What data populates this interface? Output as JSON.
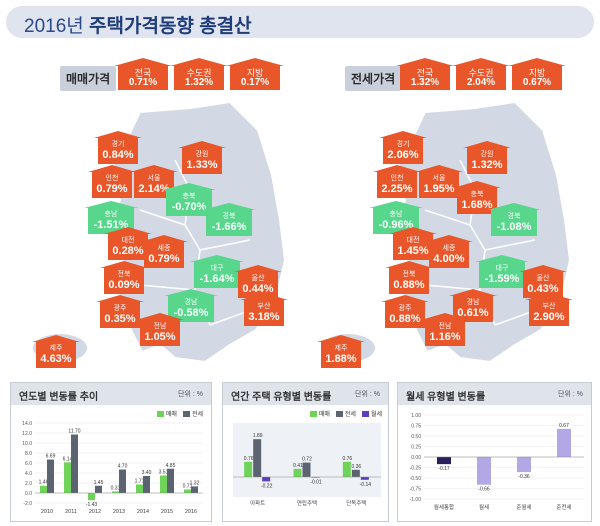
{
  "title": {
    "year": "2016년",
    "main": "주택가격동향 총결산"
  },
  "colors": {
    "up": "#e8562a",
    "down": "#57d68c",
    "sale": "#6fd35a",
    "jeonse": "#5b6470",
    "wolse": "#5b3fbf"
  },
  "sale_price": {
    "label": "매매가격",
    "summary": [
      {
        "name": "전국",
        "value": "0.71%"
      },
      {
        "name": "수도권",
        "value": "1.32%"
      },
      {
        "name": "지방",
        "value": "0.17%"
      }
    ],
    "regions": [
      {
        "name": "경기",
        "value": "0.84%"
      },
      {
        "name": "강원",
        "value": "1.33%"
      },
      {
        "name": "인천",
        "value": "0.79%"
      },
      {
        "name": "서울",
        "value": "2.14%"
      },
      {
        "name": "충북",
        "value": "-0.70%"
      },
      {
        "name": "충남",
        "value": "-1.51%"
      },
      {
        "name": "경북",
        "value": "-1.66%"
      },
      {
        "name": "대전",
        "value": "0.28%"
      },
      {
        "name": "세종",
        "value": "0.79%"
      },
      {
        "name": "전북",
        "value": "0.09%"
      },
      {
        "name": "대구",
        "value": "-1.64%"
      },
      {
        "name": "울산",
        "value": "0.44%"
      },
      {
        "name": "광주",
        "value": "0.35%"
      },
      {
        "name": "경남",
        "value": "-0.58%"
      },
      {
        "name": "부산",
        "value": "3.18%"
      },
      {
        "name": "전남",
        "value": "1.05%"
      },
      {
        "name": "제주",
        "value": "4.63%"
      }
    ]
  },
  "jeonse_price": {
    "label": "전세가격",
    "summary": [
      {
        "name": "전국",
        "value": "1.32%"
      },
      {
        "name": "수도권",
        "value": "2.04%"
      },
      {
        "name": "지방",
        "value": "0.67%"
      }
    ],
    "regions": [
      {
        "name": "경기",
        "value": "2.06%"
      },
      {
        "name": "강원",
        "value": "1.32%"
      },
      {
        "name": "인천",
        "value": "2.25%"
      },
      {
        "name": "서울",
        "value": "1.95%"
      },
      {
        "name": "충북",
        "value": "1.68%"
      },
      {
        "name": "충남",
        "value": "-0.96%"
      },
      {
        "name": "경북",
        "value": "-1.08%"
      },
      {
        "name": "대전",
        "value": "1.45%"
      },
      {
        "name": "세종",
        "value": "4.00%"
      },
      {
        "name": "전북",
        "value": "0.88%"
      },
      {
        "name": "대구",
        "value": "-1.59%"
      },
      {
        "name": "울산",
        "value": "0.43%"
      },
      {
        "name": "광주",
        "value": "0.88%"
      },
      {
        "name": "경남",
        "value": "0.61%"
      },
      {
        "name": "부산",
        "value": "2.90%"
      },
      {
        "name": "전남",
        "value": "1.16%"
      },
      {
        "name": "제주",
        "value": "1.88%"
      }
    ]
  },
  "chart_data": [
    {
      "type": "bar",
      "title": "연도별 변동률 추이",
      "unit": "단위 : %",
      "categories": [
        "2010",
        "2011",
        "2012",
        "2013",
        "2014",
        "2015",
        "2016"
      ],
      "series": [
        {
          "name": "매매",
          "values": [
            1.46,
            6.14,
            -1.43,
            0.31,
            1.71,
            3.51,
            0.71
          ]
        },
        {
          "name": "전세",
          "values": [
            6.69,
            11.7,
            1.45,
            4.7,
            3.4,
            4.85,
            1.32
          ]
        }
      ],
      "ylim": [
        -2,
        14
      ],
      "yticks": [
        "-2.0",
        "0.0",
        "2.0",
        "4.0",
        "6.0",
        "8.0",
        "10.0",
        "12.0",
        "14.0"
      ],
      "ytick_values": [
        -2,
        0,
        2,
        4,
        6,
        8,
        10,
        12,
        14
      ]
    },
    {
      "type": "bar",
      "title": "연간 주택 유형별 변동률",
      "unit": "단위 : %",
      "categories": [
        "아파트",
        "연립주택",
        "단독주택"
      ],
      "series": [
        {
          "name": "매매",
          "values": [
            0.76,
            0.41,
            0.76
          ]
        },
        {
          "name": "전세",
          "values": [
            1.89,
            0.72,
            0.36
          ]
        },
        {
          "name": "월세",
          "values": [
            -0.22,
            -0.01,
            -0.14
          ]
        }
      ],
      "ylim": [
        -0.5,
        2.5
      ]
    },
    {
      "type": "bar",
      "title": "월세 유형별 변동률",
      "unit": "단위 : %",
      "categories": [
        "월세통합",
        "월세",
        "준월세",
        "준전세"
      ],
      "series": [
        {
          "name": "월세",
          "values": [
            -0.17,
            -0.66,
            -0.36,
            0.67
          ]
        }
      ],
      "ylim": [
        -1.0,
        1.0
      ],
      "yticks": [
        "-1.00",
        "-0.75",
        "-0.50",
        "-0.25",
        "0.00",
        "0.25",
        "0.50",
        "0.75",
        "1.00"
      ],
      "ytick_values": [
        -1.0,
        -0.75,
        -0.5,
        -0.25,
        0,
        0.25,
        0.5,
        0.75,
        1.0
      ]
    }
  ]
}
